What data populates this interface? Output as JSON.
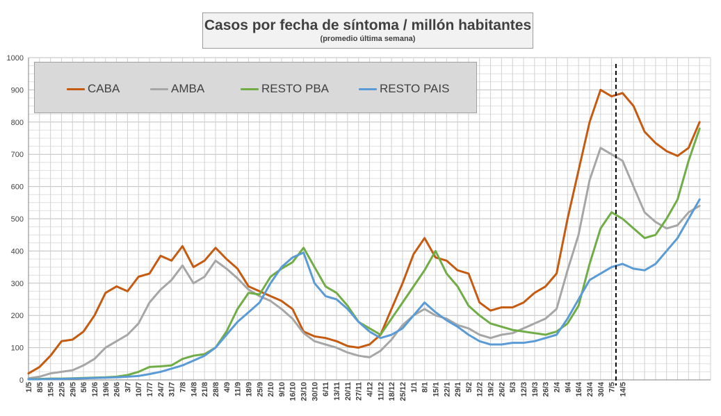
{
  "chart_data": {
    "type": "line",
    "title": "Casos por fecha de síntoma / millón habitantes",
    "subtitle": "(promedio última semana)",
    "xlabel": "",
    "ylabel": "",
    "ylim": [
      0,
      1000
    ],
    "yticks": [
      0,
      100,
      200,
      300,
      400,
      500,
      600,
      700,
      800,
      900,
      1000
    ],
    "grid": true,
    "legend_position": "top-left",
    "x_tick_labels": [
      "1/5",
      "8/5",
      "15/5",
      "22/5",
      "29/5",
      "5/6",
      "12/6",
      "19/6",
      "26/6",
      "3/7",
      "10/7",
      "17/7",
      "24/7",
      "31/7",
      "7/8",
      "14/8",
      "21/8",
      "28/8",
      "4/9",
      "11/9",
      "18/9",
      "25/9",
      "2/10",
      "9/10",
      "16/10",
      "23/10",
      "30/10",
      "6/11",
      "13/11",
      "20/11",
      "27/11",
      "4/12",
      "11/12",
      "18/12",
      "25/12",
      "1/1",
      "8/1",
      "15/1",
      "22/1",
      "29/1",
      "5/2",
      "12/2",
      "19/2",
      "26/2",
      "5/3",
      "12/3",
      "19/3",
      "26/3",
      "2/4",
      "9/4",
      "16/4",
      "23/4",
      "30/4",
      "7/5",
      "14/5"
    ],
    "vertical_marker_week": 53.4,
    "series": [
      {
        "name": "CABA",
        "color": "#c55a11",
        "points": [
          [
            0,
            20
          ],
          [
            1,
            40
          ],
          [
            2,
            75
          ],
          [
            3,
            120
          ],
          [
            4,
            125
          ],
          [
            5,
            150
          ],
          [
            6,
            200
          ],
          [
            7,
            270
          ],
          [
            8,
            290
          ],
          [
            9,
            275
          ],
          [
            10,
            320
          ],
          [
            11,
            330
          ],
          [
            12,
            385
          ],
          [
            13,
            370
          ],
          [
            14,
            415
          ],
          [
            15,
            350
          ],
          [
            16,
            370
          ],
          [
            17,
            410
          ],
          [
            18,
            375
          ],
          [
            19,
            345
          ],
          [
            20,
            290
          ],
          [
            21,
            275
          ],
          [
            22,
            260
          ],
          [
            23,
            245
          ],
          [
            24,
            220
          ],
          [
            25,
            150
          ],
          [
            26,
            135
          ],
          [
            27,
            130
          ],
          [
            28,
            120
          ],
          [
            29,
            105
          ],
          [
            30,
            100
          ],
          [
            31,
            110
          ],
          [
            32,
            140
          ],
          [
            33,
            220
          ],
          [
            34,
            300
          ],
          [
            35,
            390
          ],
          [
            36,
            440
          ],
          [
            37,
            380
          ],
          [
            38,
            370
          ],
          [
            39,
            340
          ],
          [
            40,
            330
          ],
          [
            41,
            240
          ],
          [
            42,
            215
          ],
          [
            43,
            225
          ],
          [
            44,
            225
          ],
          [
            45,
            240
          ],
          [
            46,
            270
          ],
          [
            47,
            290
          ],
          [
            48,
            330
          ],
          [
            49,
            500
          ],
          [
            50,
            650
          ],
          [
            51,
            800
          ],
          [
            52,
            900
          ],
          [
            53,
            880
          ],
          [
            54,
            890
          ],
          [
            55,
            850
          ],
          [
            56,
            770
          ],
          [
            57,
            735
          ],
          [
            58,
            710
          ],
          [
            59,
            695
          ],
          [
            60,
            720
          ],
          [
            61,
            800
          ]
        ]
      },
      {
        "name": "AMBA",
        "color": "#a6a6a6",
        "points": [
          [
            0,
            5
          ],
          [
            1,
            10
          ],
          [
            2,
            20
          ],
          [
            3,
            25
          ],
          [
            4,
            30
          ],
          [
            5,
            45
          ],
          [
            6,
            65
          ],
          [
            7,
            100
          ],
          [
            8,
            120
          ],
          [
            9,
            140
          ],
          [
            10,
            175
          ],
          [
            11,
            240
          ],
          [
            12,
            280
          ],
          [
            13,
            310
          ],
          [
            14,
            355
          ],
          [
            15,
            300
          ],
          [
            16,
            320
          ],
          [
            17,
            370
          ],
          [
            18,
            345
          ],
          [
            19,
            315
          ],
          [
            20,
            280
          ],
          [
            21,
            260
          ],
          [
            22,
            245
          ],
          [
            23,
            220
          ],
          [
            24,
            190
          ],
          [
            25,
            145
          ],
          [
            26,
            120
          ],
          [
            27,
            110
          ],
          [
            28,
            100
          ],
          [
            29,
            85
          ],
          [
            30,
            75
          ],
          [
            31,
            70
          ],
          [
            32,
            90
          ],
          [
            33,
            125
          ],
          [
            34,
            170
          ],
          [
            35,
            200
          ],
          [
            36,
            220
          ],
          [
            37,
            200
          ],
          [
            38,
            190
          ],
          [
            39,
            170
          ],
          [
            40,
            160
          ],
          [
            41,
            140
          ],
          [
            42,
            130
          ],
          [
            43,
            140
          ],
          [
            44,
            145
          ],
          [
            45,
            160
          ],
          [
            46,
            175
          ],
          [
            47,
            190
          ],
          [
            48,
            220
          ],
          [
            49,
            340
          ],
          [
            50,
            450
          ],
          [
            51,
            620
          ],
          [
            52,
            720
          ],
          [
            53,
            700
          ],
          [
            54,
            680
          ],
          [
            55,
            600
          ],
          [
            56,
            520
          ],
          [
            57,
            490
          ],
          [
            58,
            470
          ],
          [
            59,
            480
          ],
          [
            60,
            520
          ],
          [
            61,
            540
          ]
        ]
      },
      {
        "name": "RESTO PBA",
        "color": "#70ad47",
        "points": [
          [
            0,
            2
          ],
          [
            1,
            3
          ],
          [
            2,
            4
          ],
          [
            3,
            4
          ],
          [
            4,
            5
          ],
          [
            5,
            6
          ],
          [
            6,
            7
          ],
          [
            7,
            8
          ],
          [
            8,
            10
          ],
          [
            9,
            15
          ],
          [
            10,
            25
          ],
          [
            11,
            40
          ],
          [
            12,
            42
          ],
          [
            13,
            45
          ],
          [
            14,
            65
          ],
          [
            15,
            75
          ],
          [
            16,
            80
          ],
          [
            17,
            100
          ],
          [
            18,
            150
          ],
          [
            19,
            220
          ],
          [
            20,
            270
          ],
          [
            21,
            265
          ],
          [
            22,
            320
          ],
          [
            23,
            345
          ],
          [
            24,
            365
          ],
          [
            25,
            410
          ],
          [
            26,
            350
          ],
          [
            27,
            290
          ],
          [
            28,
            270
          ],
          [
            29,
            230
          ],
          [
            30,
            180
          ],
          [
            31,
            160
          ],
          [
            32,
            140
          ],
          [
            33,
            190
          ],
          [
            34,
            240
          ],
          [
            35,
            290
          ],
          [
            36,
            340
          ],
          [
            37,
            400
          ],
          [
            38,
            330
          ],
          [
            39,
            290
          ],
          [
            40,
            230
          ],
          [
            41,
            200
          ],
          [
            42,
            175
          ],
          [
            43,
            165
          ],
          [
            44,
            155
          ],
          [
            45,
            150
          ],
          [
            46,
            145
          ],
          [
            47,
            140
          ],
          [
            48,
            150
          ],
          [
            49,
            175
          ],
          [
            50,
            230
          ],
          [
            51,
            360
          ],
          [
            52,
            470
          ],
          [
            53,
            520
          ],
          [
            54,
            500
          ],
          [
            55,
            470
          ],
          [
            56,
            440
          ],
          [
            57,
            450
          ],
          [
            58,
            500
          ],
          [
            59,
            560
          ],
          [
            60,
            680
          ],
          [
            61,
            780
          ]
        ]
      },
      {
        "name": "RESTO PAIS",
        "color": "#5b9bd5",
        "points": [
          [
            0,
            2
          ],
          [
            1,
            2
          ],
          [
            2,
            3
          ],
          [
            3,
            3
          ],
          [
            4,
            4
          ],
          [
            5,
            5
          ],
          [
            6,
            6
          ],
          [
            7,
            7
          ],
          [
            8,
            8
          ],
          [
            9,
            10
          ],
          [
            10,
            12
          ],
          [
            11,
            18
          ],
          [
            12,
            25
          ],
          [
            13,
            35
          ],
          [
            14,
            45
          ],
          [
            15,
            60
          ],
          [
            16,
            75
          ],
          [
            17,
            100
          ],
          [
            18,
            140
          ],
          [
            19,
            180
          ],
          [
            20,
            210
          ],
          [
            21,
            240
          ],
          [
            22,
            300
          ],
          [
            23,
            350
          ],
          [
            24,
            380
          ],
          [
            25,
            395
          ],
          [
            26,
            300
          ],
          [
            27,
            260
          ],
          [
            28,
            250
          ],
          [
            29,
            220
          ],
          [
            30,
            180
          ],
          [
            31,
            150
          ],
          [
            32,
            130
          ],
          [
            33,
            140
          ],
          [
            34,
            160
          ],
          [
            35,
            200
          ],
          [
            36,
            240
          ],
          [
            37,
            210
          ],
          [
            38,
            185
          ],
          [
            39,
            165
          ],
          [
            40,
            140
          ],
          [
            41,
            120
          ],
          [
            42,
            110
          ],
          [
            43,
            110
          ],
          [
            44,
            115
          ],
          [
            45,
            115
          ],
          [
            46,
            120
          ],
          [
            47,
            130
          ],
          [
            48,
            140
          ],
          [
            49,
            190
          ],
          [
            50,
            250
          ],
          [
            51,
            310
          ],
          [
            52,
            330
          ],
          [
            53,
            350
          ],
          [
            54,
            360
          ],
          [
            55,
            345
          ],
          [
            56,
            340
          ],
          [
            57,
            360
          ],
          [
            58,
            400
          ],
          [
            59,
            440
          ],
          [
            60,
            500
          ],
          [
            61,
            560
          ]
        ]
      }
    ]
  }
}
